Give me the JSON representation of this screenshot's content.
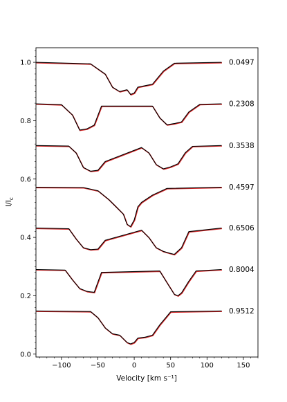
{
  "chart_data": {
    "type": "line",
    "xlabel": "Velocity [km s⁻¹]",
    "ylabel": "I/I",
    "ylabel_subscript": "c",
    "xlim": [
      -135,
      170
    ],
    "ylim": [
      -0.01,
      1.05
    ],
    "x_ticks": [
      -100,
      -50,
      0,
      50,
      100,
      150
    ],
    "y_ticks": [
      0.0,
      0.2,
      0.4,
      0.6,
      0.8,
      1.0
    ],
    "x_tick_labels": [
      "−100",
      "−50",
      "0",
      "50",
      "100",
      "150"
    ],
    "y_tick_labels": [
      "0.0",
      "0.2",
      "0.4",
      "0.6",
      "0.8",
      "1.0"
    ],
    "grid": false,
    "series_colors": {
      "observed": "#d62728",
      "model": "#000000"
    },
    "profiles": [
      {
        "phase": "0.0497",
        "continuum": 1.0,
        "velocity": [
          -135,
          -60,
          -40,
          -30,
          -20,
          -10,
          -5,
          0,
          5,
          15,
          25,
          40,
          55,
          120
        ],
        "flux": [
          1.0,
          0.995,
          0.96,
          0.915,
          0.9,
          0.906,
          0.89,
          0.895,
          0.915,
          0.92,
          0.925,
          0.97,
          0.997,
          1.0
        ]
      },
      {
        "phase": "0.2308",
        "continuum": 0.858,
        "velocity": [
          -135,
          -100,
          -85,
          -75,
          -65,
          -55,
          -45,
          25,
          35,
          45,
          55,
          65,
          75,
          90,
          120
        ],
        "flux": [
          0.858,
          0.855,
          0.82,
          0.768,
          0.772,
          0.785,
          0.85,
          0.85,
          0.81,
          0.786,
          0.79,
          0.796,
          0.83,
          0.856,
          0.858
        ]
      },
      {
        "phase": "0.3538",
        "continuum": 0.715,
        "velocity": [
          -135,
          -90,
          -80,
          -70,
          -60,
          -50,
          -40,
          10,
          20,
          30,
          40,
          50,
          60,
          70,
          80,
          120
        ],
        "flux": [
          0.715,
          0.713,
          0.69,
          0.64,
          0.627,
          0.63,
          0.66,
          0.708,
          0.69,
          0.65,
          0.635,
          0.642,
          0.652,
          0.69,
          0.712,
          0.715
        ]
      },
      {
        "phase": "0.4597",
        "continuum": 0.572,
        "velocity": [
          -135,
          -70,
          -50,
          -35,
          -25,
          -15,
          -10,
          -5,
          0,
          5,
          10,
          25,
          45,
          120
        ],
        "flux": [
          0.572,
          0.571,
          0.56,
          0.53,
          0.505,
          0.48,
          0.445,
          0.437,
          0.46,
          0.505,
          0.52,
          0.545,
          0.568,
          0.572
        ]
      },
      {
        "phase": "0.6506",
        "continuum": 0.432,
        "velocity": [
          -135,
          -90,
          -80,
          -70,
          -60,
          -50,
          -40,
          10,
          20,
          30,
          40,
          50,
          55,
          65,
          75,
          120
        ],
        "flux": [
          0.432,
          0.43,
          0.395,
          0.365,
          0.358,
          0.36,
          0.39,
          0.425,
          0.4,
          0.365,
          0.352,
          0.345,
          0.342,
          0.365,
          0.42,
          0.432
        ]
      },
      {
        "phase": "0.8004",
        "continuum": 0.29,
        "velocity": [
          -135,
          -95,
          -85,
          -75,
          -65,
          -55,
          -45,
          35,
          45,
          55,
          60,
          65,
          75,
          85,
          120
        ],
        "flux": [
          0.29,
          0.288,
          0.255,
          0.225,
          0.215,
          0.212,
          0.28,
          0.285,
          0.245,
          0.205,
          0.2,
          0.21,
          0.25,
          0.285,
          0.29
        ]
      },
      {
        "phase": "0.9512",
        "continuum": 0.148,
        "velocity": [
          -135,
          -60,
          -50,
          -40,
          -30,
          -20,
          -10,
          -5,
          0,
          5,
          15,
          25,
          35,
          50,
          120
        ],
        "flux": [
          0.148,
          0.146,
          0.125,
          0.09,
          0.07,
          0.065,
          0.04,
          0.035,
          0.04,
          0.055,
          0.058,
          0.065,
          0.1,
          0.145,
          0.148
        ]
      }
    ]
  }
}
